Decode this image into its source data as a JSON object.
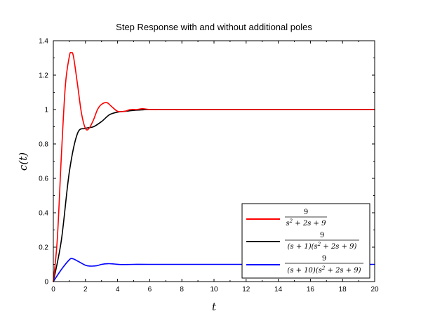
{
  "chart_data": {
    "type": "line",
    "title": "Step Response with and without additional poles",
    "xlabel": "t",
    "ylabel": "c(t)",
    "xlim": [
      0,
      20
    ],
    "ylim": [
      0,
      1.4
    ],
    "xticks": [
      "0",
      "2",
      "4",
      "6",
      "8",
      "10",
      "12",
      "14",
      "16",
      "18",
      "20"
    ],
    "yticks": [
      "0",
      "0.2",
      "0.4",
      "0.6",
      "0.8",
      "1",
      "1.2",
      "1.4"
    ],
    "grid": false,
    "legend_position": "bottom-right",
    "series": [
      {
        "name": "9 / (s^2 + 2s + 9)",
        "color": "#ff0000",
        "x": [
          0,
          0.25,
          0.5,
          0.75,
          1.0,
          1.11,
          1.25,
          1.5,
          1.75,
          2.0,
          2.22,
          2.5,
          2.75,
          3.0,
          3.33,
          3.6,
          4.0,
          4.44,
          4.8,
          5.2,
          5.55,
          6.0,
          6.5,
          7.0,
          8.0,
          10.0,
          12.0,
          14.0,
          16.0,
          18.0,
          20.0
        ],
        "y": [
          0,
          0.25,
          0.73,
          1.14,
          1.31,
          1.33,
          1.31,
          1.15,
          0.98,
          0.89,
          0.89,
          0.94,
          1.0,
          1.03,
          1.04,
          1.02,
          0.99,
          0.99,
          1.0,
          1.0,
          1.005,
          1.0,
          1.0,
          1.0,
          1.0,
          1.0,
          1.0,
          1.0,
          1.0,
          1.0,
          1.0
        ]
      },
      {
        "name": "9 / ((s + 1)(s^2 + 2s + 9))",
        "color": "#000000",
        "x": [
          0,
          0.5,
          1.0,
          1.5,
          2.0,
          2.5,
          3.0,
          3.5,
          4.0,
          4.5,
          5.0,
          5.5,
          6.0,
          6.5,
          7.0,
          8.0,
          10.0,
          12.0,
          14.0,
          16.0,
          18.0,
          20.0
        ],
        "y": [
          0,
          0.24,
          0.64,
          0.86,
          0.89,
          0.9,
          0.93,
          0.97,
          0.985,
          0.99,
          0.995,
          0.998,
          1.0,
          1.0,
          1.0,
          1.0,
          1.0,
          1.0,
          1.0,
          1.0,
          1.0,
          1.0
        ]
      },
      {
        "name": "9 / ((s + 10)(s^2 + 2s + 9))",
        "color": "#0000ff",
        "x": [
          0,
          0.5,
          1.0,
          1.2,
          1.5,
          2.0,
          2.3,
          2.7,
          3.0,
          3.4,
          3.8,
          4.2,
          5.0,
          6.0,
          8.0,
          10.0,
          12.0,
          14.0,
          16.0,
          18.0,
          20.0
        ],
        "y": [
          0,
          0.07,
          0.127,
          0.133,
          0.12,
          0.095,
          0.09,
          0.092,
          0.1,
          0.104,
          0.102,
          0.099,
          0.1,
          0.1,
          0.1,
          0.1,
          0.1,
          0.1,
          0.1,
          0.1,
          0.1
        ]
      }
    ]
  }
}
